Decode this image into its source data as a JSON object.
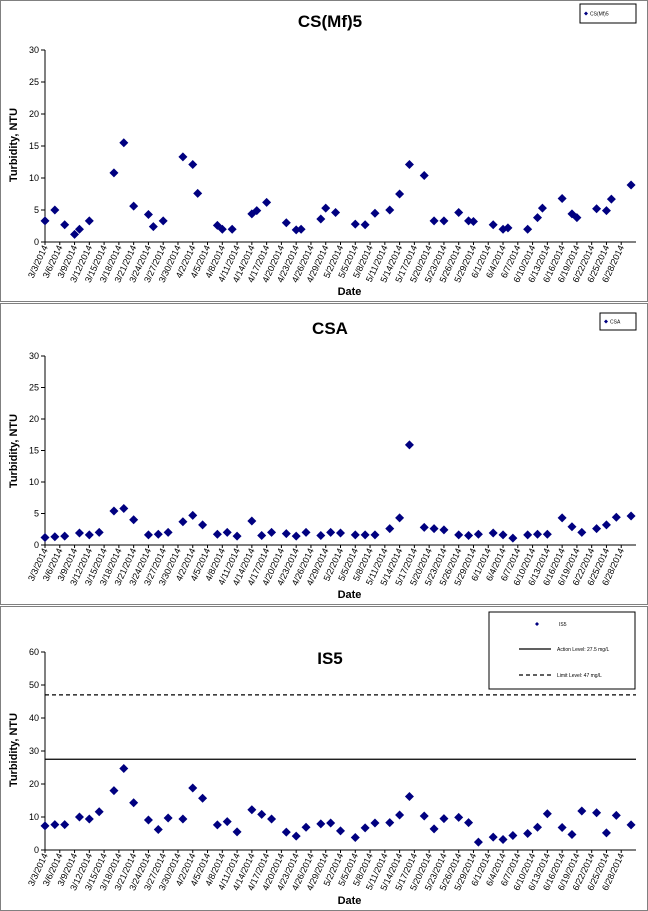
{
  "chart_data": [
    {
      "type": "scatter",
      "title": "CS(Mf)5",
      "xlabel": "Date",
      "ylabel": "Turbidity, NTU",
      "ylim": [
        0,
        30
      ],
      "yticks": [
        0,
        5,
        10,
        15,
        20,
        25,
        30
      ],
      "xlim": [
        "3/3/2014",
        "7/1/2014"
      ],
      "xticks": [
        "3/3/2014",
        "3/6/2014",
        "3/9/2014",
        "3/12/2014",
        "3/15/2014",
        "3/18/2014",
        "3/21/2014",
        "3/24/2014",
        "3/27/2014",
        "3/30/2014",
        "4/2/2014",
        "4/5/2014",
        "4/8/2014",
        "4/11/2014",
        "4/14/2014",
        "4/17/2014",
        "4/20/2014",
        "4/23/2014",
        "4/26/2014",
        "4/29/2014",
        "5/2/2014",
        "5/5/2014",
        "5/8/2014",
        "5/11/2014",
        "5/14/2014",
        "5/17/2014",
        "5/20/2014",
        "5/23/2014",
        "5/26/2014",
        "5/29/2014",
        "6/1/2014",
        "6/4/2014",
        "6/7/2014",
        "6/10/2014",
        "6/13/2014",
        "6/16/2014",
        "6/19/2014",
        "6/22/2014",
        "6/25/2014",
        "6/28/2014"
      ],
      "grid": false,
      "legend_position": "top-right",
      "series": [
        {
          "name": "CS(Mf)5",
          "marker": "diamond",
          "color": "#000080",
          "points": [
            [
              "3/3/2014",
              3.3
            ],
            [
              "3/5/2014",
              5.0
            ],
            [
              "3/7/2014",
              2.7
            ],
            [
              "3/9/2014",
              1.2
            ],
            [
              "3/10/2014",
              2.0
            ],
            [
              "3/12/2014",
              3.3
            ],
            [
              "3/17/2014",
              10.8
            ],
            [
              "3/19/2014",
              15.5
            ],
            [
              "3/21/2014",
              5.6
            ],
            [
              "3/24/2014",
              4.3
            ],
            [
              "3/25/2014",
              2.4
            ],
            [
              "3/27/2014",
              3.3
            ],
            [
              "3/31/2014",
              13.3
            ],
            [
              "4/2/2014",
              12.1
            ],
            [
              "4/3/2014",
              7.6
            ],
            [
              "4/7/2014",
              2.6
            ],
            [
              "4/8/2014",
              2.0
            ],
            [
              "4/10/2014",
              2.0
            ],
            [
              "4/14/2014",
              4.4
            ],
            [
              "4/15/2014",
              4.9
            ],
            [
              "4/17/2014",
              6.2
            ],
            [
              "4/21/2014",
              3.0
            ],
            [
              "4/23/2014",
              1.9
            ],
            [
              "4/24/2014",
              2.0
            ],
            [
              "4/28/2014",
              3.6
            ],
            [
              "4/29/2014",
              5.3
            ],
            [
              "5/1/2014",
              4.6
            ],
            [
              "5/5/2014",
              2.8
            ],
            [
              "5/7/2014",
              2.7
            ],
            [
              "5/9/2014",
              4.5
            ],
            [
              "5/12/2014",
              5.0
            ],
            [
              "5/14/2014",
              7.5
            ],
            [
              "5/16/2014",
              12.1
            ],
            [
              "5/19/2014",
              10.4
            ],
            [
              "5/21/2014",
              3.3
            ],
            [
              "5/23/2014",
              3.3
            ],
            [
              "5/26/2014",
              4.6
            ],
            [
              "5/28/2014",
              3.3
            ],
            [
              "5/29/2014",
              3.2
            ],
            [
              "6/2/2014",
              2.7
            ],
            [
              "6/4/2014",
              2.0
            ],
            [
              "6/5/2014",
              2.2
            ],
            [
              "6/9/2014",
              2.0
            ],
            [
              "6/11/2014",
              3.8
            ],
            [
              "6/12/2014",
              5.3
            ],
            [
              "6/16/2014",
              6.8
            ],
            [
              "6/18/2014",
              4.4
            ],
            [
              "6/19/2014",
              3.8
            ],
            [
              "6/23/2014",
              5.2
            ],
            [
              "6/25/2014",
              4.9
            ],
            [
              "6/26/2014",
              6.7
            ],
            [
              "6/30/2014",
              8.9
            ]
          ]
        }
      ]
    },
    {
      "type": "scatter",
      "title": "CSA",
      "xlabel": "Date",
      "ylabel": "Turbidity, NTU",
      "ylim": [
        0,
        30
      ],
      "yticks": [
        0,
        5,
        10,
        15,
        20,
        25,
        30
      ],
      "xlim": [
        "3/3/2014",
        "7/1/2014"
      ],
      "xticks": [
        "3/3/2014",
        "3/6/2014",
        "3/9/2014",
        "3/12/2014",
        "3/15/2014",
        "3/18/2014",
        "3/21/2014",
        "3/24/2014",
        "3/27/2014",
        "3/30/2014",
        "4/2/2014",
        "4/5/2014",
        "4/8/2014",
        "4/11/2014",
        "4/14/2014",
        "4/17/2014",
        "4/20/2014",
        "4/23/2014",
        "4/26/2014",
        "4/29/2014",
        "5/2/2014",
        "5/5/2014",
        "5/8/2014",
        "5/11/2014",
        "5/14/2014",
        "5/17/2014",
        "5/20/2014",
        "5/23/2014",
        "5/26/2014",
        "5/29/2014",
        "6/1/2014",
        "6/4/2014",
        "6/7/2014",
        "6/10/2014",
        "6/13/2014",
        "6/16/2014",
        "6/19/2014",
        "6/22/2014",
        "6/25/2014",
        "6/28/2014"
      ],
      "grid": false,
      "legend_position": "top-right",
      "series": [
        {
          "name": "CSA",
          "marker": "diamond",
          "color": "#000080",
          "points": [
            [
              "3/3/2014",
              1.2
            ],
            [
              "3/5/2014",
              1.3
            ],
            [
              "3/7/2014",
              1.4
            ],
            [
              "3/10/2014",
              1.9
            ],
            [
              "3/12/2014",
              1.6
            ],
            [
              "3/14/2014",
              2.0
            ],
            [
              "3/17/2014",
              5.4
            ],
            [
              "3/19/2014",
              5.8
            ],
            [
              "3/21/2014",
              4.0
            ],
            [
              "3/24/2014",
              1.6
            ],
            [
              "3/26/2014",
              1.7
            ],
            [
              "3/28/2014",
              2.0
            ],
            [
              "3/31/2014",
              3.7
            ],
            [
              "4/2/2014",
              4.7
            ],
            [
              "4/4/2014",
              3.2
            ],
            [
              "4/7/2014",
              1.7
            ],
            [
              "4/9/2014",
              2.0
            ],
            [
              "4/11/2014",
              1.4
            ],
            [
              "4/14/2014",
              3.8
            ],
            [
              "4/16/2014",
              1.5
            ],
            [
              "4/18/2014",
              2.0
            ],
            [
              "4/21/2014",
              1.8
            ],
            [
              "4/23/2014",
              1.4
            ],
            [
              "4/25/2014",
              2.0
            ],
            [
              "4/28/2014",
              1.5
            ],
            [
              "4/30/2014",
              2.0
            ],
            [
              "5/2/2014",
              1.9
            ],
            [
              "5/5/2014",
              1.6
            ],
            [
              "5/7/2014",
              1.6
            ],
            [
              "5/9/2014",
              1.6
            ],
            [
              "5/12/2014",
              2.6
            ],
            [
              "5/14/2014",
              4.3
            ],
            [
              "5/16/2014",
              15.9
            ],
            [
              "5/19/2014",
              2.8
            ],
            [
              "5/21/2014",
              2.6
            ],
            [
              "5/23/2014",
              2.4
            ],
            [
              "5/26/2014",
              1.6
            ],
            [
              "5/28/2014",
              1.5
            ],
            [
              "5/30/2014",
              1.7
            ],
            [
              "6/2/2014",
              1.9
            ],
            [
              "6/4/2014",
              1.6
            ],
            [
              "6/6/2014",
              1.1
            ],
            [
              "6/9/2014",
              1.6
            ],
            [
              "6/11/2014",
              1.7
            ],
            [
              "6/13/2014",
              1.7
            ],
            [
              "6/16/2014",
              4.3
            ],
            [
              "6/18/2014",
              2.9
            ],
            [
              "6/20/2014",
              2.0
            ],
            [
              "6/23/2014",
              2.6
            ],
            [
              "6/25/2014",
              3.2
            ],
            [
              "6/27/2014",
              4.4
            ],
            [
              "6/30/2014",
              4.6
            ]
          ]
        }
      ]
    },
    {
      "type": "scatter",
      "title": "IS5",
      "xlabel": "Date",
      "ylabel": "Turbidity, NTU",
      "ylim": [
        0,
        60
      ],
      "yticks": [
        0,
        10,
        20,
        30,
        40,
        50,
        60
      ],
      "xlim": [
        "3/3/2014",
        "7/1/2014"
      ],
      "xticks": [
        "3/3/2014",
        "3/6/2014",
        "3/9/2014",
        "3/12/2014",
        "3/15/2014",
        "3/18/2014",
        "3/21/2014",
        "3/24/2014",
        "3/27/2014",
        "3/30/2014",
        "4/2/2014",
        "4/5/2014",
        "4/8/2014",
        "4/11/2014",
        "4/14/2014",
        "4/17/2014",
        "4/20/2014",
        "4/23/2014",
        "4/26/2014",
        "4/29/2014",
        "5/2/2014",
        "5/5/2014",
        "5/8/2014",
        "5/11/2014",
        "5/14/2014",
        "5/17/2014",
        "5/20/2014",
        "5/23/2014",
        "5/26/2014",
        "5/29/2014",
        "6/1/2014",
        "6/4/2014",
        "6/7/2014",
        "6/10/2014",
        "6/13/2014",
        "6/16/2014",
        "6/19/2014",
        "6/22/2014",
        "6/25/2014",
        "6/28/2014"
      ],
      "grid": false,
      "legend_position": "top-right",
      "reference_lines": [
        {
          "name": "Action Level: 27.5 mg/L",
          "y": 27.5,
          "style": "solid"
        },
        {
          "name": "Limit Level: 47 mg/L",
          "y": 47,
          "style": "dashed"
        }
      ],
      "series": [
        {
          "name": "IS5",
          "marker": "diamond",
          "color": "#000080",
          "points": [
            [
              "3/3/2014",
              7.3
            ],
            [
              "3/5/2014",
              7.7
            ],
            [
              "3/7/2014",
              7.7
            ],
            [
              "3/10/2014",
              10.0
            ],
            [
              "3/12/2014",
              9.4
            ],
            [
              "3/14/2014",
              11.6
            ],
            [
              "3/17/2014",
              18.0
            ],
            [
              "3/19/2014",
              24.7
            ],
            [
              "3/21/2014",
              14.3
            ],
            [
              "3/24/2014",
              9.1
            ],
            [
              "3/26/2014",
              6.2
            ],
            [
              "3/28/2014",
              9.7
            ],
            [
              "3/31/2014",
              9.4
            ],
            [
              "4/2/2014",
              18.8
            ],
            [
              "4/4/2014",
              15.7
            ],
            [
              "4/7/2014",
              7.6
            ],
            [
              "4/9/2014",
              8.6
            ],
            [
              "4/11/2014",
              5.5
            ],
            [
              "4/14/2014",
              12.2
            ],
            [
              "4/16/2014",
              10.8
            ],
            [
              "4/18/2014",
              9.4
            ],
            [
              "4/21/2014",
              5.4
            ],
            [
              "4/23/2014",
              4.2
            ],
            [
              "4/25/2014",
              6.9
            ],
            [
              "4/28/2014",
              7.9
            ],
            [
              "4/30/2014",
              8.2
            ],
            [
              "5/2/2014",
              5.8
            ],
            [
              "5/5/2014",
              3.8
            ],
            [
              "5/7/2014",
              6.7
            ],
            [
              "5/9/2014",
              8.2
            ],
            [
              "5/12/2014",
              8.3
            ],
            [
              "5/14/2014",
              10.6
            ],
            [
              "5/16/2014",
              16.2
            ],
            [
              "5/19/2014",
              10.3
            ],
            [
              "5/21/2014",
              6.4
            ],
            [
              "5/23/2014",
              9.5
            ],
            [
              "5/26/2014",
              9.9
            ],
            [
              "5/28/2014",
              8.3
            ],
            [
              "5/30/2014",
              2.4
            ],
            [
              "6/2/2014",
              3.9
            ],
            [
              "6/4/2014",
              3.2
            ],
            [
              "6/6/2014",
              4.4
            ],
            [
              "6/9/2014",
              5.0
            ],
            [
              "6/11/2014",
              6.9
            ],
            [
              "6/13/2014",
              11.0
            ],
            [
              "6/16/2014",
              6.8
            ],
            [
              "6/18/2014",
              4.7
            ],
            [
              "6/20/2014",
              11.8
            ],
            [
              "6/23/2014",
              11.3
            ],
            [
              "6/25/2014",
              5.2
            ],
            [
              "6/27/2014",
              10.5
            ],
            [
              "6/30/2014",
              7.6
            ]
          ]
        }
      ]
    }
  ]
}
